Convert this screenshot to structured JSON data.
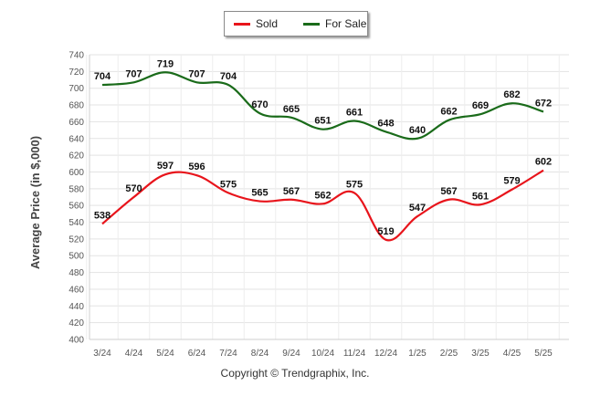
{
  "legend": {
    "items": [
      {
        "name": "Sold",
        "color": "#e8141b"
      },
      {
        "name": "For Sale",
        "color": "#1a6b1a"
      }
    ]
  },
  "footer": {
    "copyright": "Copyright © Trendgraphix, Inc."
  },
  "chart_data": {
    "type": "line",
    "title": "",
    "xlabel": "",
    "ylabel": "Average Price (in $,000)",
    "categories": [
      "3/24",
      "4/24",
      "5/24",
      "6/24",
      "7/24",
      "8/24",
      "9/24",
      "10/24",
      "11/24",
      "12/24",
      "1/25",
      "2/25",
      "3/25",
      "4/25",
      "5/25"
    ],
    "ylim": [
      400,
      740
    ],
    "ytick_step": 20,
    "grid": true,
    "legend_position": "top-center",
    "series": [
      {
        "name": "Sold",
        "color": "#e8141b",
        "values": [
          538,
          570,
          597,
          596,
          575,
          565,
          567,
          562,
          575,
          519,
          547,
          567,
          561,
          579,
          602
        ]
      },
      {
        "name": "For Sale",
        "color": "#1a6b1a",
        "values": [
          704,
          707,
          719,
          707,
          704,
          670,
          665,
          651,
          661,
          648,
          640,
          662,
          669,
          682,
          672
        ]
      }
    ]
  }
}
